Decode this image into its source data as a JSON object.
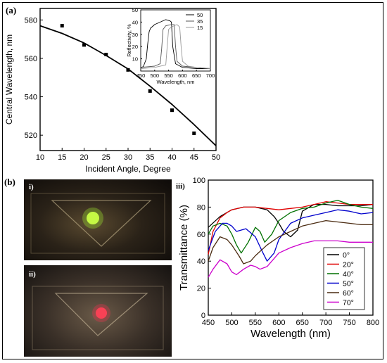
{
  "panels": {
    "a_label": "(a)",
    "b_label": "(b)",
    "photo_i_label": "i)",
    "photo_ii_label": "ii)",
    "c_label": "iii)"
  },
  "chart_data": [
    {
      "type": "scatter",
      "panel": "(a)",
      "xlabel": "Incident Angle, Degree",
      "ylabel": "Central Wavelength, nm",
      "xlim": [
        10,
        50
      ],
      "ylim": [
        512,
        586
      ],
      "xticks": [
        10,
        15,
        20,
        25,
        30,
        35,
        40,
        45,
        50
      ],
      "yticks": [
        520,
        540,
        560,
        580
      ],
      "series": [
        {
          "kind": "markers",
          "x": [
            15,
            20,
            25,
            30,
            35,
            40,
            45
          ],
          "y": [
            577,
            567,
            562,
            554,
            543,
            533,
            521
          ]
        },
        {
          "kind": "fit-line",
          "x": [
            10,
            15,
            20,
            25,
            30,
            35,
            40,
            45,
            50
          ],
          "y": [
            577.0,
            573.0,
            568.0,
            561.5,
            554.5,
            545.5,
            536.0,
            525.5,
            514.5
          ]
        }
      ]
    },
    {
      "type": "line",
      "panel": "inset",
      "xlabel": "Wavelength, nm",
      "ylabel": "Reflectivity, %",
      "xlim": [
        450,
        700
      ],
      "ylim": [
        0,
        50
      ],
      "xticks": [
        450,
        500,
        550,
        600,
        650,
        700
      ],
      "yticks": [
        10,
        20,
        30,
        40,
        50
      ],
      "legend_position": "top-right",
      "series": [
        {
          "name": "50",
          "color": "#000000",
          "x": [
            450,
            460,
            470,
            475,
            480,
            485,
            500,
            520,
            540,
            555,
            560,
            565,
            575,
            600,
            650,
            700
          ],
          "y": [
            2,
            4,
            10,
            22,
            32,
            35,
            38,
            40,
            42,
            41,
            40,
            20,
            6,
            3,
            2,
            2
          ]
        },
        {
          "name": "35",
          "color": "#555555",
          "x": [
            450,
            500,
            520,
            525,
            530,
            540,
            560,
            570,
            575,
            580,
            600,
            650,
            700
          ],
          "y": [
            3,
            4,
            6,
            18,
            34,
            37,
            38,
            38,
            20,
            8,
            4,
            3,
            2
          ]
        },
        {
          "name": "15",
          "color": "#999999",
          "x": [
            450,
            500,
            540,
            545,
            550,
            560,
            580,
            590,
            595,
            600,
            620,
            650,
            700
          ],
          "y": [
            2,
            3,
            5,
            20,
            34,
            36,
            38,
            36,
            20,
            8,
            4,
            3,
            2
          ]
        }
      ]
    },
    {
      "type": "line",
      "panel": "iii)",
      "xlabel": "Wavelength (nm)",
      "ylabel": "Transmittance (%)",
      "xlim": [
        450,
        800
      ],
      "ylim": [
        0,
        100
      ],
      "xticks": [
        450,
        500,
        550,
        600,
        650,
        700,
        750,
        800
      ],
      "yticks": [
        0,
        20,
        40,
        60,
        80,
        100
      ],
      "legend_position": "bottom-right",
      "series": [
        {
          "name": "0°",
          "color": "#000000",
          "x": [
            450,
            475,
            500,
            525,
            550,
            575,
            590,
            600,
            610,
            625,
            640,
            650,
            675,
            700,
            725,
            750,
            775,
            800
          ],
          "y": [
            65,
            73,
            78,
            80,
            80,
            78,
            73,
            68,
            62,
            58,
            63,
            77,
            82,
            82,
            81,
            81,
            81,
            82
          ]
        },
        {
          "name": "20°",
          "color": "#e00000",
          "x": [
            450,
            460,
            475,
            490,
            500,
            525,
            550,
            575,
            600,
            625,
            650,
            675,
            700,
            725,
            750,
            775,
            800
          ],
          "y": [
            45,
            62,
            72,
            76,
            78,
            80,
            80,
            79,
            78,
            79,
            80,
            82,
            84,
            83,
            82,
            82,
            82
          ]
        },
        {
          "name": "40°",
          "color": "#007000",
          "x": [
            450,
            460,
            475,
            490,
            500,
            510,
            520,
            535,
            550,
            560,
            570,
            585,
            600,
            625,
            650,
            675,
            700,
            725,
            750,
            775,
            800
          ],
          "y": [
            60,
            66,
            68,
            66,
            60,
            52,
            46,
            54,
            65,
            62,
            54,
            60,
            70,
            76,
            79,
            80,
            83,
            85,
            82,
            80,
            79
          ]
        },
        {
          "name": "50°",
          "color": "#0000cc",
          "x": [
            450,
            465,
            480,
            490,
            500,
            510,
            530,
            550,
            565,
            575,
            590,
            600,
            625,
            650,
            675,
            700,
            725,
            750,
            775,
            800
          ],
          "y": [
            48,
            62,
            68,
            68,
            66,
            62,
            64,
            58,
            47,
            40,
            46,
            56,
            68,
            72,
            74,
            76,
            78,
            77,
            75,
            76
          ]
        },
        {
          "name": "60°",
          "color": "#4a2a10",
          "x": [
            450,
            460,
            475,
            490,
            500,
            515,
            525,
            540,
            550,
            575,
            600,
            625,
            650,
            675,
            700,
            725,
            750,
            775,
            800
          ],
          "y": [
            40,
            50,
            58,
            56,
            52,
            44,
            38,
            40,
            44,
            52,
            58,
            62,
            66,
            68,
            70,
            69,
            68,
            67,
            67
          ]
        },
        {
          "name": "70°",
          "color": "#cc00cc",
          "x": [
            450,
            460,
            475,
            490,
            500,
            510,
            525,
            540,
            550,
            560,
            575,
            590,
            600,
            625,
            650,
            675,
            700,
            725,
            750,
            775,
            800
          ],
          "y": [
            28,
            34,
            41,
            38,
            32,
            30,
            34,
            37,
            36,
            34,
            36,
            42,
            46,
            50,
            53,
            55,
            55,
            55,
            54,
            54,
            54
          ]
        }
      ]
    }
  ]
}
